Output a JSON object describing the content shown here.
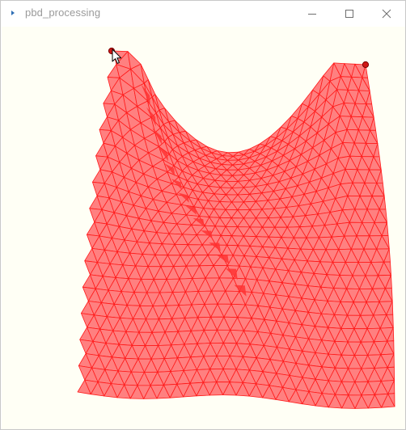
{
  "window": {
    "title": "pbd_processing",
    "icon": "processing-app-icon",
    "controls": {
      "minimize": "minimize-icon",
      "maximize": "maximize-icon",
      "close": "close-icon"
    }
  },
  "canvas": {
    "background": "#fffff5",
    "cloth_fill": "#ff8080",
    "cloth_edge": "#ff1a1a",
    "cloth_shadow": "#ff3333",
    "pin_color": "#d01818",
    "cursor": "arrow-cursor-icon"
  }
}
